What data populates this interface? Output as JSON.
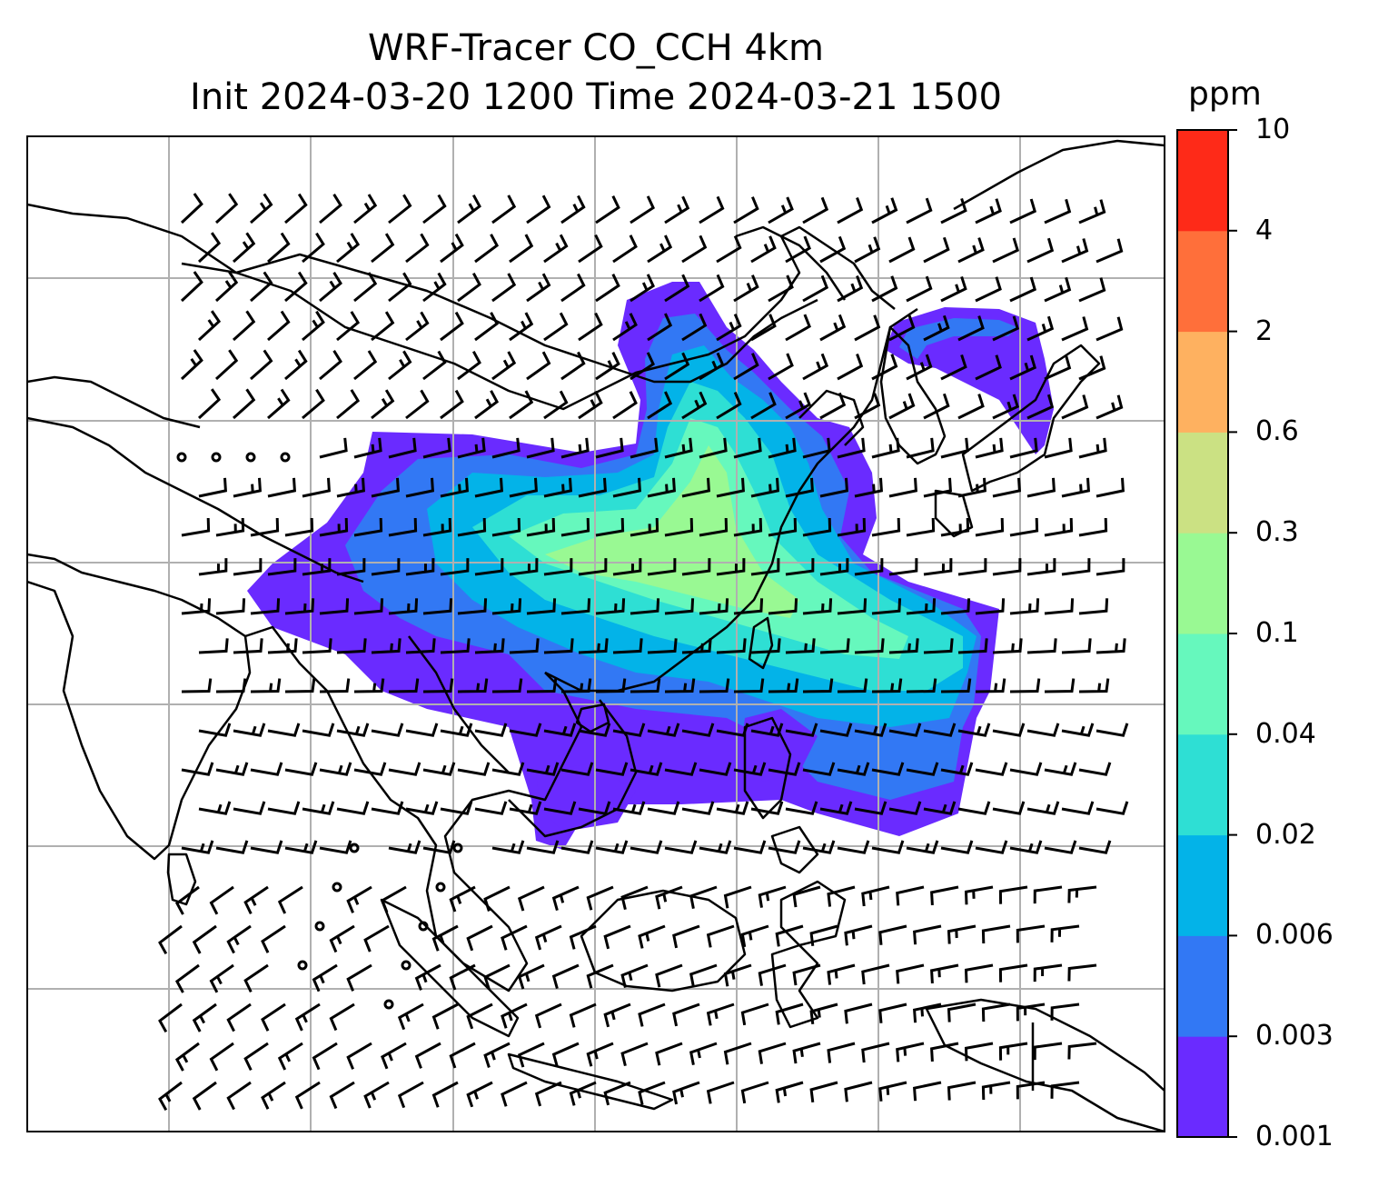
{
  "figure": {
    "title_line1": "WRF-Tracer CO_CCH 4km",
    "title_line2": "Init 2024-03-20 1200 Time 2024-03-21 1500"
  },
  "colorbar": {
    "unit": "ppm",
    "ticks": [
      "0.001",
      "0.003",
      "0.006",
      "0.02",
      "0.04",
      "0.1",
      "0.3",
      "0.6",
      "2",
      "4",
      "10"
    ],
    "colors": [
      "#6a2bff",
      "#3278f4",
      "#03b3e8",
      "#2edfd4",
      "#66f8bd",
      "#99f993",
      "#cbe183",
      "#feb160",
      "#ff6f3a",
      "#fe2a18"
    ]
  },
  "map": {
    "land_outline_color": "#000000",
    "gridline_color": "#b0b0b0",
    "wind_barb_color": "#000000",
    "plume_levels_shown": [
      "0.001",
      "0.003",
      "0.006",
      "0.02",
      "0.04",
      "0.1"
    ]
  }
}
